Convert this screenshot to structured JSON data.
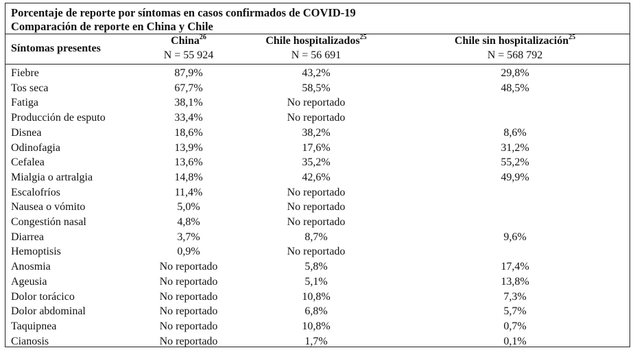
{
  "title": {
    "line1": "Porcentaje de reporte por síntomas en casos confirmados de COVID-19",
    "line2": "Comparación de reporte en China y Chile"
  },
  "header": {
    "col0": "Síntomas presentes",
    "col1": {
      "label": "China",
      "ref": "26",
      "n": "N = 55 924"
    },
    "col2": {
      "label": "Chile hospitalizados",
      "ref": "25",
      "n": "N = 56 691"
    },
    "col3": {
      "label": "Chile sin hospitalización",
      "ref": "25",
      "n": "N = 568 792"
    }
  },
  "rows": [
    [
      "Fiebre",
      "87,9%",
      "43,2%",
      "29,8%"
    ],
    [
      "Tos seca",
      "67,7%",
      "58,5%",
      "48,5%"
    ],
    [
      "Fatiga",
      "38,1%",
      "No reportado",
      ""
    ],
    [
      "Producción de esputo",
      "33,4%",
      "No reportado",
      ""
    ],
    [
      "Disnea",
      "18,6%",
      "38,2%",
      "8,6%"
    ],
    [
      "Odinofagia",
      "13,9%",
      "17,6%",
      "31,2%"
    ],
    [
      "Cefalea",
      "13,6%",
      "35,2%",
      "55,2%"
    ],
    [
      "Mialgia o artralgia",
      "14,8%",
      "42,6%",
      "49,9%"
    ],
    [
      "Escalofríos",
      "11,4%",
      "No reportado",
      ""
    ],
    [
      "Nausea o vómito",
      "5,0%",
      "No reportado",
      ""
    ],
    [
      "Congestión nasal",
      "4,8%",
      "No reportado",
      ""
    ],
    [
      "Diarrea",
      "3,7%",
      "8,7%",
      "9,6%"
    ],
    [
      "Hemoptisis",
      "0,9%",
      "No reportado",
      ""
    ],
    [
      "Anosmia",
      "No reportado",
      "5,8%",
      "17,4%"
    ],
    [
      "Ageusia",
      "No reportado",
      "5,1%",
      "13,8%"
    ],
    [
      "Dolor torácico",
      "No reportado",
      "10,8%",
      "7,3%"
    ],
    [
      "Dolor abdominal",
      "No reportado",
      "6,8%",
      "5,7%"
    ],
    [
      "Taquipnea",
      "No reportado",
      "10,8%",
      "0,7%"
    ],
    [
      "Cianosis",
      "No reportado",
      "1,7%",
      "0,1%"
    ]
  ]
}
